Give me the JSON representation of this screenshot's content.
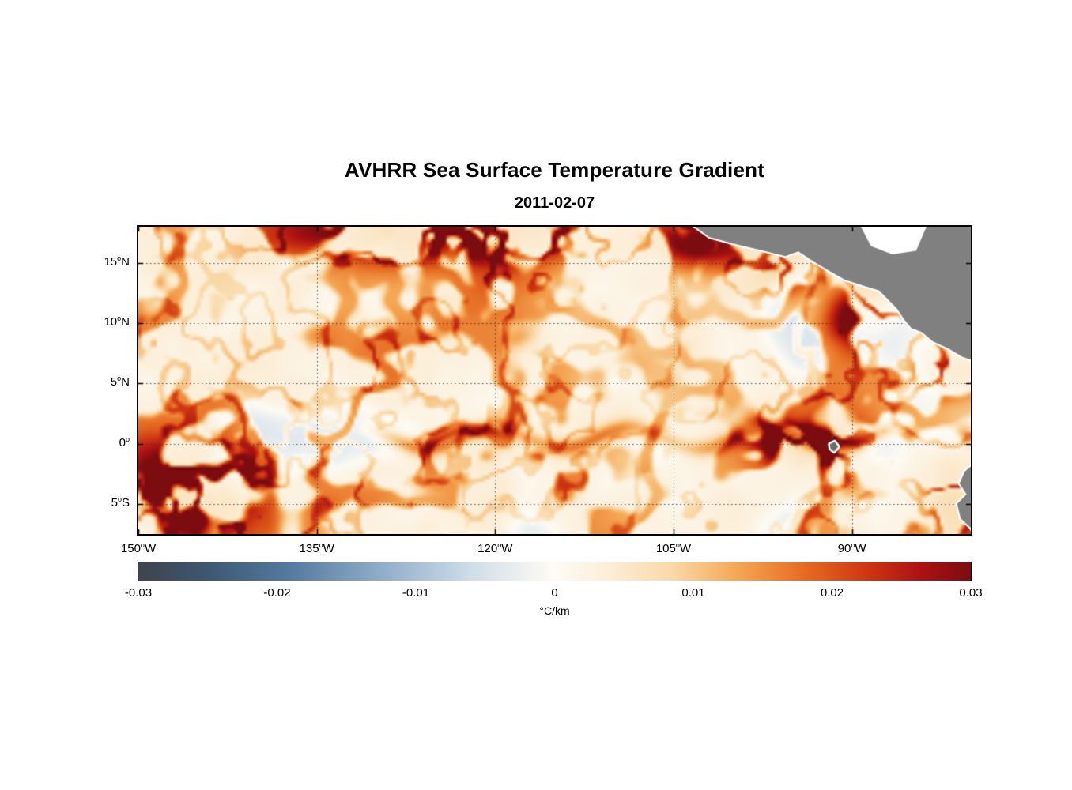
{
  "page": {
    "background": "#ffffff"
  },
  "chart_data": {
    "type": "heatmap",
    "title": "AVHRR Sea Surface Temperature Gradient",
    "date": "2011-02-07",
    "unit": "°C/km",
    "grid": true,
    "x_axis": {
      "lon_min": -150,
      "lon_max": -80,
      "ticks": [
        {
          "lon": -150,
          "num": "150",
          "hemi": "W"
        },
        {
          "lon": -135,
          "num": "135",
          "hemi": "W"
        },
        {
          "lon": -120,
          "num": "120",
          "hemi": "W"
        },
        {
          "lon": -105,
          "num": "105",
          "hemi": "W"
        },
        {
          "lon": -90,
          "num": "90",
          "hemi": "W"
        }
      ]
    },
    "y_axis": {
      "lat_min": -7.5,
      "lat_max": 18,
      "ticks": [
        {
          "lat": 15,
          "num": "15",
          "hemi": "N"
        },
        {
          "lat": 10,
          "num": "10",
          "hemi": "N"
        },
        {
          "lat": 5,
          "num": "5",
          "hemi": "N"
        },
        {
          "lat": 0,
          "num": "0",
          "hemi": ""
        },
        {
          "lat": -5,
          "num": "5",
          "hemi": "S"
        }
      ]
    },
    "colorbar": {
      "min": -0.03,
      "max": 0.03,
      "tick_labels": [
        "-0.03",
        "-0.02",
        "-0.01",
        "0",
        "0.01",
        "0.02",
        "0.03"
      ],
      "label": "°C/km"
    },
    "colormap_stops": [
      {
        "t": 0.0,
        "color": "#3f444c"
      },
      {
        "t": 0.08,
        "color": "#3d5671"
      },
      {
        "t": 0.18,
        "color": "#53799f"
      },
      {
        "t": 0.3,
        "color": "#93b1cc"
      },
      {
        "t": 0.4,
        "color": "#cfdde8"
      },
      {
        "t": 0.47,
        "color": "#f2f3f2"
      },
      {
        "t": 0.5,
        "color": "#fdfbf5"
      },
      {
        "t": 0.56,
        "color": "#fcefda"
      },
      {
        "t": 0.64,
        "color": "#f9d9a8"
      },
      {
        "t": 0.72,
        "color": "#f4a755"
      },
      {
        "t": 0.8,
        "color": "#e66b22"
      },
      {
        "t": 0.88,
        "color": "#cc3311"
      },
      {
        "t": 0.94,
        "color": "#ab1212"
      },
      {
        "t": 1.0,
        "color": "#7c0c10"
      }
    ],
    "land_color": "#808080",
    "coastline_color": "#ffffff",
    "grid_color": "rgba(40,50,80,0.85)",
    "background_field_value": 0.003,
    "high_gradient_regions": [
      {
        "name": "mexico-coast",
        "lon": -102.5,
        "lat": 16.6,
        "sx": 2.6,
        "sy": 1.4,
        "peak": 0.02
      },
      {
        "name": "gulf-of-tehuantepec",
        "lon": -96.2,
        "lat": 14.6,
        "sx": 2.4,
        "sy": 1.6,
        "peak": 0.028
      },
      {
        "name": "gulf-of-papagayo",
        "lon": -89.0,
        "lat": 10.6,
        "sx": 2.2,
        "sy": 1.8,
        "peak": 0.03
      },
      {
        "name": "panama-bight",
        "lon": -82.6,
        "lat": 6.3,
        "sx": 1.8,
        "sy": 1.5,
        "peak": 0.022
      },
      {
        "name": "peru-coastal-upwelling",
        "lon": -81.6,
        "lat": -4.6,
        "sx": 1.6,
        "sy": 2.4,
        "peak": 0.03
      },
      {
        "name": "north-tropical-band",
        "lon": -124.0,
        "lat": 17.6,
        "sx": 9.0,
        "sy": 1.6,
        "peak": 0.02
      },
      {
        "name": "galapagos-wake",
        "lon": -93.8,
        "lat": -0.2,
        "sx": 2.6,
        "sy": 1.1,
        "peak": 0.014
      },
      {
        "name": "southwest-eddies",
        "lon": -146.0,
        "lat": -3.5,
        "sx": 3.5,
        "sy": 2.5,
        "peak": 0.018
      }
    ],
    "equatorial_front": {
      "lat_mean": 0.45,
      "amplitude": 0.85,
      "wavelength_deg": 11.5,
      "lon_start": -133,
      "lon_end": -84,
      "peak": 0.017
    },
    "land": {
      "polygons": [
        {
          "name": "central-america",
          "points": [
            [
              -103.6,
              18.3
            ],
            [
              -102.0,
              17.15
            ],
            [
              -100.0,
              16.6
            ],
            [
              -97.6,
              16.05
            ],
            [
              -95.6,
              15.55
            ],
            [
              -94.5,
              15.95
            ],
            [
              -93.2,
              15.1
            ],
            [
              -92.0,
              14.4
            ],
            [
              -90.6,
              13.6
            ],
            [
              -89.0,
              13.1
            ],
            [
              -87.7,
              12.7
            ],
            [
              -87.0,
              12.0
            ],
            [
              -86.2,
              11.2
            ],
            [
              -85.6,
              10.3
            ],
            [
              -85.0,
              9.6
            ],
            [
              -84.1,
              9.25
            ],
            [
              -83.2,
              8.5
            ],
            [
              -81.9,
              7.9
            ],
            [
              -80.7,
              7.2
            ],
            [
              -79.5,
              6.8
            ],
            [
              -79.5,
              18.3
            ]
          ]
        },
        {
          "name": "south-america",
          "points": [
            [
              -79.5,
              -1.5
            ],
            [
              -80.5,
              -2.3
            ],
            [
              -80.95,
              -3.3
            ],
            [
              -80.35,
              -4.2
            ],
            [
              -81.15,
              -5.0
            ],
            [
              -80.85,
              -6.2
            ],
            [
              -80.0,
              -7.0
            ],
            [
              -79.5,
              -7.9
            ]
          ]
        },
        {
          "name": "galapagos-islands",
          "points": [
            [
              -91.85,
              -0.05
            ],
            [
              -91.45,
              0.15
            ],
            [
              -91.15,
              -0.25
            ],
            [
              -91.5,
              -0.65
            ],
            [
              -91.8,
              -0.4
            ]
          ]
        }
      ],
      "water_notches": [
        {
          "name": "gulf-of-honduras",
          "points": [
            [
              -89.4,
              18.3
            ],
            [
              -88.4,
              16.4
            ],
            [
              -86.6,
              15.7
            ],
            [
              -84.6,
              16.0
            ],
            [
              -83.6,
              18.3
            ]
          ]
        }
      ]
    }
  }
}
